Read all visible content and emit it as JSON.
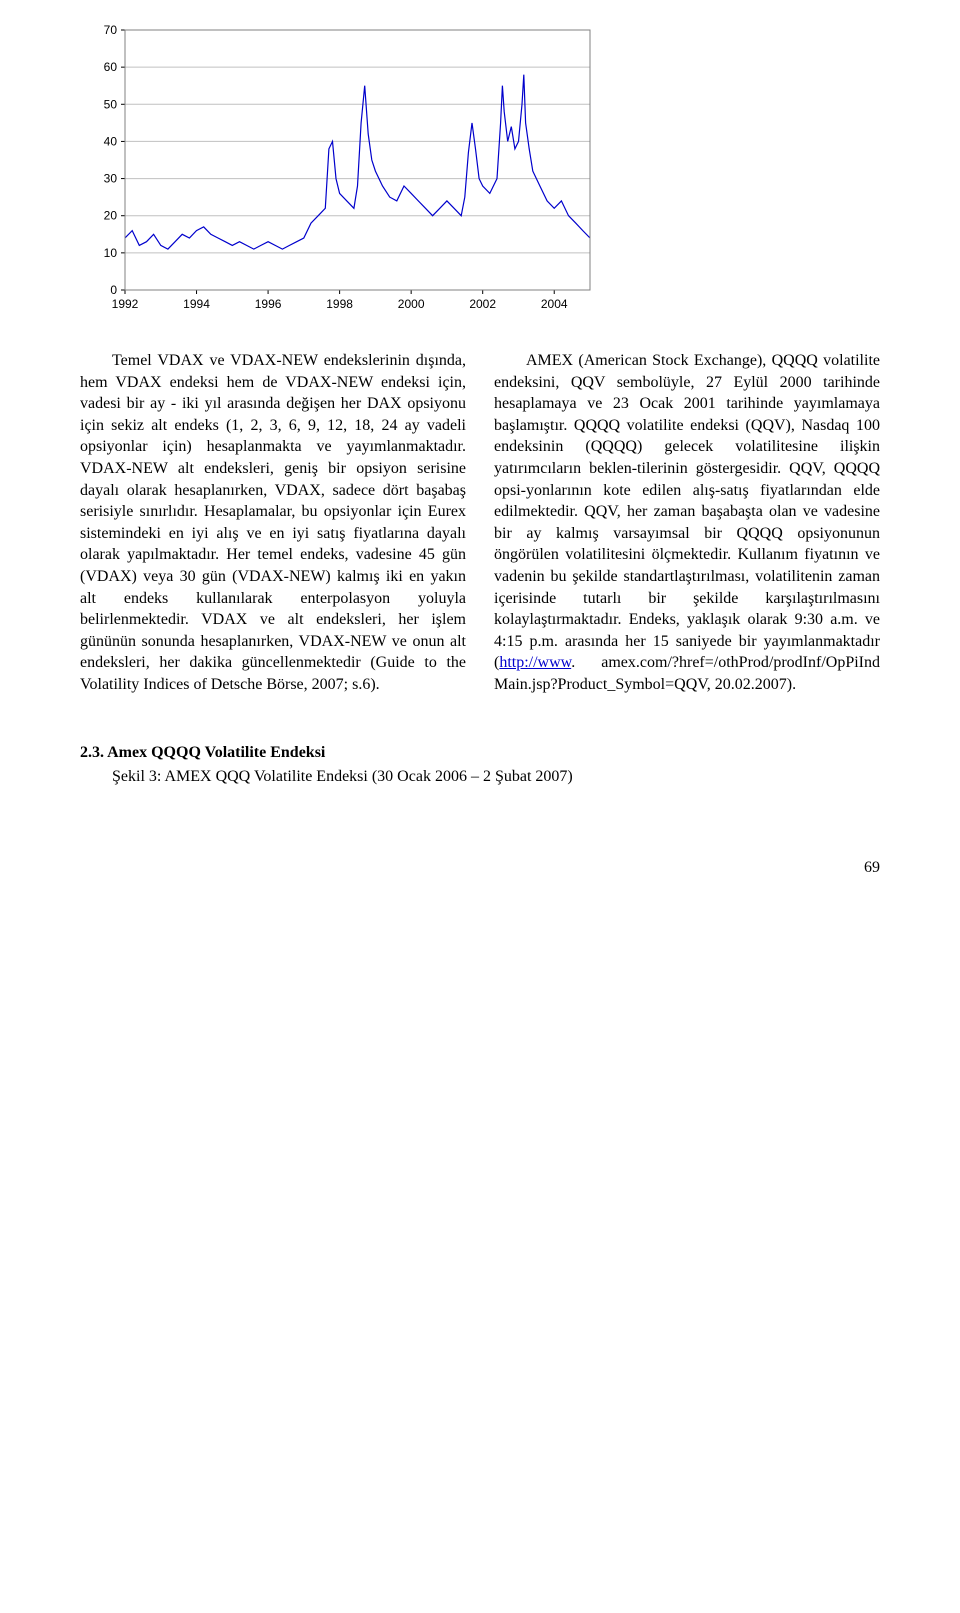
{
  "chart": {
    "type": "line",
    "ylim": [
      0,
      70
    ],
    "ytick_step": 10,
    "yticks": [
      0,
      10,
      20,
      30,
      40,
      50,
      60,
      70
    ],
    "xticks": [
      1992,
      1994,
      1996,
      1998,
      2000,
      2002,
      2004
    ],
    "xlim": [
      1992,
      2005
    ],
    "background_color": "#ffffff",
    "plot_border_color": "#808080",
    "grid_color": "#c0c0c0",
    "line_color": "#0000cc",
    "line_width": 1.2,
    "axis_font_size": 12,
    "axis_font_color": "#000000",
    "data": [
      [
        1992.0,
        14
      ],
      [
        1992.2,
        16
      ],
      [
        1992.4,
        12
      ],
      [
        1992.6,
        13
      ],
      [
        1992.8,
        15
      ],
      [
        1993.0,
        12
      ],
      [
        1993.2,
        11
      ],
      [
        1993.4,
        13
      ],
      [
        1993.6,
        15
      ],
      [
        1993.8,
        14
      ],
      [
        1994.0,
        16
      ],
      [
        1994.2,
        17
      ],
      [
        1994.4,
        15
      ],
      [
        1994.6,
        14
      ],
      [
        1994.8,
        13
      ],
      [
        1995.0,
        12
      ],
      [
        1995.2,
        13
      ],
      [
        1995.4,
        12
      ],
      [
        1995.6,
        11
      ],
      [
        1995.8,
        12
      ],
      [
        1996.0,
        13
      ],
      [
        1996.2,
        12
      ],
      [
        1996.4,
        11
      ],
      [
        1996.6,
        12
      ],
      [
        1996.8,
        13
      ],
      [
        1997.0,
        14
      ],
      [
        1997.2,
        18
      ],
      [
        1997.4,
        20
      ],
      [
        1997.6,
        22
      ],
      [
        1997.7,
        38
      ],
      [
        1997.8,
        40
      ],
      [
        1997.9,
        30
      ],
      [
        1998.0,
        26
      ],
      [
        1998.2,
        24
      ],
      [
        1998.4,
        22
      ],
      [
        1998.5,
        28
      ],
      [
        1998.6,
        45
      ],
      [
        1998.7,
        55
      ],
      [
        1998.8,
        42
      ],
      [
        1998.9,
        35
      ],
      [
        1999.0,
        32
      ],
      [
        1999.2,
        28
      ],
      [
        1999.4,
        25
      ],
      [
        1999.6,
        24
      ],
      [
        1999.8,
        28
      ],
      [
        2000.0,
        26
      ],
      [
        2000.2,
        24
      ],
      [
        2000.4,
        22
      ],
      [
        2000.6,
        20
      ],
      [
        2000.8,
        22
      ],
      [
        2001.0,
        24
      ],
      [
        2001.2,
        22
      ],
      [
        2001.4,
        20
      ],
      [
        2001.5,
        25
      ],
      [
        2001.6,
        37
      ],
      [
        2001.7,
        45
      ],
      [
        2001.8,
        38
      ],
      [
        2001.9,
        30
      ],
      [
        2002.0,
        28
      ],
      [
        2002.2,
        26
      ],
      [
        2002.4,
        30
      ],
      [
        2002.5,
        45
      ],
      [
        2002.55,
        55
      ],
      [
        2002.6,
        48
      ],
      [
        2002.7,
        40
      ],
      [
        2002.8,
        44
      ],
      [
        2002.9,
        38
      ],
      [
        2003.0,
        40
      ],
      [
        2003.1,
        50
      ],
      [
        2003.15,
        58
      ],
      [
        2003.2,
        45
      ],
      [
        2003.3,
        38
      ],
      [
        2003.4,
        32
      ],
      [
        2003.6,
        28
      ],
      [
        2003.8,
        24
      ],
      [
        2004.0,
        22
      ],
      [
        2004.2,
        24
      ],
      [
        2004.4,
        20
      ],
      [
        2004.6,
        18
      ],
      [
        2004.8,
        16
      ],
      [
        2005.0,
        14
      ]
    ]
  },
  "body": {
    "para1_part1": "Temel VDAX ve VDAX-NEW endekslerinin dışında, hem VDAX endeksi hem de VDAX-NEW endeksi için, vadesi bir ay - iki yıl arasında değişen her DAX opsiyonu için sekiz alt endeks (1, 2, 3, 6, 9, 12, 18, 24 ay vadeli opsiyonlar için) hesaplanmakta ve yayımlanmaktadır. VDAX-NEW alt endeksleri, geniş bir opsiyon serisine dayalı olarak hesaplanırken, VDAX, sadece dört başabaş serisiyle sınırlıdır. Hesaplamalar, bu opsiyonlar için Eurex sistemindeki en iyi alış ve en iyi satış fiyatlarına dayalı olarak yapılmaktadır. Her temel endeks, vadesine 45 gün (VDAX) veya 30 gün (VDAX-NEW) kalmış iki en yakın alt endeks kullanılarak enterpolasyon yoluyla belirlenmektedir. VDAX ve alt endeksleri, her işlem gününün sonunda hesaplanırken, VDAX-NEW ve onun alt endeksleri, her dakika güncellenmektedir (Guide to the Volatility Indices of Detsche Börse, 2007; s.6).",
    "para2_part1": "AMEX (American Stock Exchange), QQQQ volatilite endeksini, QQV sembolüyle, 27 Eylül 2000 tarihinde hesaplamaya ve 23 Ocak 2001 tarihinde yayımlamaya başlamıştır. QQQQ volatilite endeksi (QQV), Nasdaq 100 endeksinin (QQQQ) gelecek volatilitesine ilişkin yatırımcıların beklen-tilerinin göstergesidir. QQV, QQQQ opsi-yonlarının kote edilen alış-satış fiyatlarından elde edilmektedir. QQV, her zaman başabaşta olan ve vadesine bir ay kalmış varsayımsal bir QQQQ opsiyonunun öngörülen volatilitesini ölçmektedir. Kullanım fiyatının ve vadenin bu şekilde standartlaştırılması, volatilitenin zaman içerisinde tutarlı bir şekilde karşılaştırılmasını kolaylaştırmaktadır. Endeks, yaklaşık olarak 9:30 a.m. ve 4:15 p.m. arasında her 15 saniyede bir yayımlanmaktadır (",
    "link_text": "http://www",
    "para2_part2": ". amex.com/?href=/othProd/prodInf/OpPiInd Main.jsp?Product_Symbol=QQV, 20.02.2007)."
  },
  "subsection": {
    "number": "2.3.",
    "title": "Amex QQQQ Volatilite Endeksi",
    "caption": "Şekil 3: AMEX QQQ Volatilite Endeksi (30 Ocak 2006 – 2 Şubat 2007)"
  },
  "page_number": "69"
}
